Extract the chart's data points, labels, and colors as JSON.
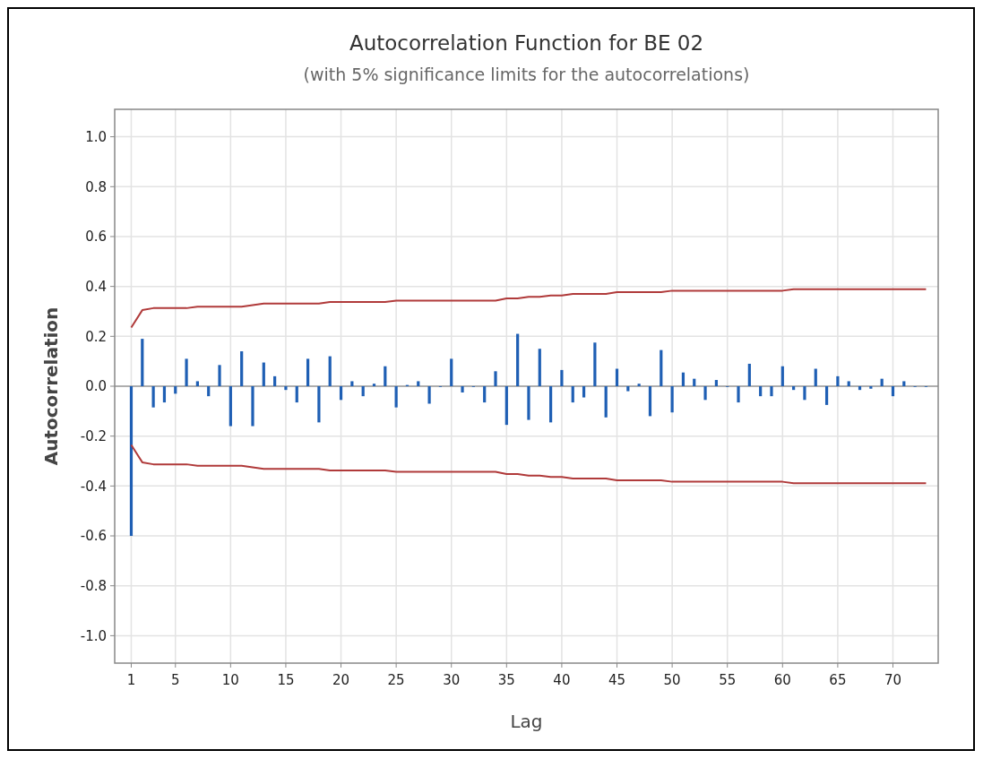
{
  "chart_data": {
    "type": "bar",
    "title": "Autocorrelation Function for BE 02",
    "subtitle": "(with 5% significance limits for the autocorrelations)",
    "xlabel": "Lag",
    "ylabel": "Autocorrelation",
    "x": [
      1,
      2,
      3,
      4,
      5,
      6,
      7,
      8,
      9,
      10,
      11,
      12,
      13,
      14,
      15,
      16,
      17,
      18,
      19,
      20,
      21,
      22,
      23,
      24,
      25,
      26,
      27,
      28,
      29,
      30,
      31,
      32,
      33,
      34,
      35,
      36,
      37,
      38,
      39,
      40,
      41,
      42,
      43,
      44,
      45,
      46,
      47,
      48,
      49,
      50,
      51,
      52,
      53,
      54,
      55,
      56,
      57,
      58,
      59,
      60,
      61,
      62,
      63,
      64,
      65,
      66,
      67,
      68,
      69,
      70,
      71,
      72,
      73
    ],
    "series": [
      {
        "color": "#1f5fb4",
        "values": [
          -0.6,
          0.19,
          -0.085,
          -0.065,
          -0.03,
          0.11,
          0.02,
          -0.04,
          0.085,
          -0.16,
          0.14,
          -0.16,
          0.095,
          0.04,
          -0.015,
          -0.065,
          0.11,
          -0.145,
          0.12,
          -0.055,
          0.02,
          -0.04,
          0.01,
          0.08,
          -0.085,
          0.005,
          0.02,
          -0.07,
          0,
          0.11,
          -0.025,
          0,
          -0.065,
          0.06,
          -0.155,
          0.21,
          -0.135,
          0.15,
          -0.145,
          0.065,
          -0.065,
          -0.045,
          0.175,
          -0.125,
          0.07,
          -0.02,
          0.01,
          -0.12,
          0.145,
          -0.105,
          0.055,
          0.03,
          -0.055,
          0.025,
          0,
          -0.065,
          0.09,
          -0.04,
          -0.04,
          0.08,
          -0.015,
          -0.055,
          0.07,
          -0.075,
          0.04,
          0.02,
          -0.015,
          -0.01,
          0.03,
          -0.04,
          0.02,
          0,
          0
        ]
      },
      {
        "type": "line",
        "color": "#b03a3a",
        "values": [
          0.235,
          0.305,
          0.313,
          0.313,
          0.313,
          0.313,
          0.319,
          0.319,
          0.319,
          0.319,
          0.319,
          0.325,
          0.331,
          0.331,
          0.331,
          0.331,
          0.331,
          0.331,
          0.338,
          0.338,
          0.338,
          0.338,
          0.338,
          0.338,
          0.343,
          0.343,
          0.343,
          0.343,
          0.343,
          0.343,
          0.343,
          0.343,
          0.343,
          0.343,
          0.352,
          0.352,
          0.358,
          0.358,
          0.364,
          0.364,
          0.37,
          0.37,
          0.37,
          0.37,
          0.377,
          0.377,
          0.377,
          0.377,
          0.377,
          0.383,
          0.383,
          0.383,
          0.383,
          0.383,
          0.383,
          0.383,
          0.383,
          0.383,
          0.383,
          0.383,
          0.389,
          0.389,
          0.389,
          0.389,
          0.389,
          0.389,
          0.389,
          0.389,
          0.389,
          0.389,
          0.389,
          0.389,
          0.389
        ]
      },
      {
        "type": "line",
        "color": "#b03a3a",
        "values": [
          -0.235,
          -0.305,
          -0.313,
          -0.313,
          -0.313,
          -0.313,
          -0.319,
          -0.319,
          -0.319,
          -0.319,
          -0.319,
          -0.325,
          -0.331,
          -0.331,
          -0.331,
          -0.331,
          -0.331,
          -0.331,
          -0.338,
          -0.338,
          -0.338,
          -0.338,
          -0.338,
          -0.338,
          -0.343,
          -0.343,
          -0.343,
          -0.343,
          -0.343,
          -0.343,
          -0.343,
          -0.343,
          -0.343,
          -0.343,
          -0.352,
          -0.352,
          -0.358,
          -0.358,
          -0.364,
          -0.364,
          -0.37,
          -0.37,
          -0.37,
          -0.37,
          -0.377,
          -0.377,
          -0.377,
          -0.377,
          -0.377,
          -0.383,
          -0.383,
          -0.383,
          -0.383,
          -0.383,
          -0.383,
          -0.383,
          -0.383,
          -0.383,
          -0.383,
          -0.383,
          -0.389,
          -0.389,
          -0.389,
          -0.389,
          -0.389,
          -0.389,
          -0.389,
          -0.389,
          -0.389,
          -0.389,
          -0.389,
          -0.389,
          -0.389
        ]
      }
    ],
    "xlim": [
      -0.5,
      74.1
    ],
    "xticks": [
      1,
      5,
      10,
      15,
      20,
      25,
      30,
      35,
      40,
      45,
      50,
      55,
      60,
      65,
      70
    ],
    "ylim": [
      -1.11,
      1.11
    ],
    "yticks": [
      {
        "value": -1,
        "label": "-1.0"
      },
      {
        "value": -0.8,
        "label": "-0.8"
      },
      {
        "value": -0.6,
        "label": "-0.6"
      },
      {
        "value": -0.4,
        "label": "-0.4"
      },
      {
        "value": -0.2,
        "label": "-0.2"
      },
      {
        "value": 0,
        "label": "0.0"
      },
      {
        "value": 0.2,
        "label": "0.2"
      },
      {
        "value": 0.4,
        "label": "0.4"
      },
      {
        "value": 0.6,
        "label": "0.6"
      },
      {
        "value": 0.8,
        "label": "0.8"
      },
      {
        "value": 1,
        "label": "1.0"
      }
    ],
    "ref_lines": [
      {
        "axis": "y",
        "value": 0,
        "color": "#9a9a9a"
      }
    ],
    "grid": true
  }
}
